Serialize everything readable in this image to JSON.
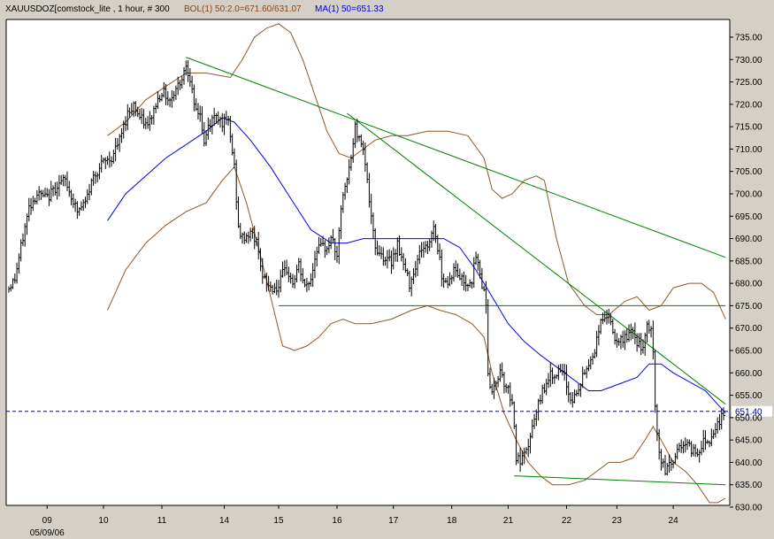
{
  "header": {
    "symbol_text": "XAUUSDOZ[comstock_lite , 1 hour, # 300",
    "bol_text": "BOL(1) 50:2.0=671.60/631.07",
    "ma_text": "MA(1) 50=651.33"
  },
  "colors": {
    "background": "#d4d0c8",
    "plot_background": "#ffffff",
    "price_bars": "#000000",
    "bollinger": "#8b5a2b",
    "moving_average": "#0000ee",
    "trendlines": "#008000",
    "last_price_line": "#00008b"
  },
  "chart_data": {
    "type": "line",
    "title": "",
    "x_axis": {
      "tick_labels": [
        "09",
        "10",
        "11",
        "14",
        "15",
        "16",
        "17",
        "18",
        "21",
        "22",
        "23",
        "24"
      ],
      "tick_bars": [
        19,
        47,
        76,
        107,
        134,
        163,
        191,
        220,
        248,
        277,
        302,
        330
      ],
      "sublabel": "05/09/06",
      "bar_count": 356
    },
    "y_axis": {
      "position": "right",
      "ylim": [
        628,
        738
      ],
      "ticks": [
        "735.00",
        "730.00",
        "725.00",
        "720.00",
        "715.00",
        "710.00",
        "705.00",
        "700.00",
        "695.00",
        "690.00",
        "685.00",
        "680.00",
        "675.00",
        "670.00",
        "665.00",
        "660.00",
        "655.00",
        "650.00",
        "645.00",
        "640.00",
        "635.00",
        "630.00"
      ],
      "tick_values": [
        735,
        730,
        725,
        720,
        715,
        710,
        705,
        700,
        695,
        690,
        685,
        680,
        675,
        670,
        665,
        660,
        655,
        650,
        645,
        640,
        635,
        630
      ],
      "last_price_label": "651.40",
      "last_price": 651.4
    },
    "grid": false,
    "price_keypoints": [
      [
        0,
        679
      ],
      [
        3,
        681
      ],
      [
        6,
        688
      ],
      [
        10,
        697
      ],
      [
        14,
        700
      ],
      [
        19,
        699
      ],
      [
        24,
        702
      ],
      [
        28,
        703
      ],
      [
        34,
        696
      ],
      [
        38,
        698
      ],
      [
        42,
        704
      ],
      [
        47,
        707
      ],
      [
        51,
        708
      ],
      [
        55,
        712
      ],
      [
        59,
        718
      ],
      [
        62,
        720
      ],
      [
        65,
        717
      ],
      [
        69,
        715
      ],
      [
        73,
        720
      ],
      [
        76,
        723
      ],
      [
        80,
        721
      ],
      [
        86,
        726
      ],
      [
        88,
        729
      ],
      [
        90,
        726
      ],
      [
        92,
        719
      ],
      [
        95,
        718
      ],
      [
        97,
        711
      ],
      [
        99,
        715
      ],
      [
        103,
        718
      ],
      [
        106,
        716
      ],
      [
        109,
        716
      ],
      [
        112,
        706
      ],
      [
        114,
        692
      ],
      [
        116,
        690
      ],
      [
        119,
        691
      ],
      [
        121,
        691
      ],
      [
        124,
        688
      ],
      [
        126,
        681
      ],
      [
        130,
        679
      ],
      [
        134,
        679
      ],
      [
        136,
        682
      ],
      [
        138,
        683
      ],
      [
        141,
        680
      ],
      [
        144,
        684
      ],
      [
        147,
        679
      ],
      [
        150,
        681
      ],
      [
        153,
        688
      ],
      [
        157,
        688
      ],
      [
        161,
        690
      ],
      [
        163,
        685
      ],
      [
        165,
        697
      ],
      [
        168,
        703
      ],
      [
        170,
        708
      ],
      [
        172,
        715
      ],
      [
        174,
        712
      ],
      [
        176,
        711
      ],
      [
        178,
        703
      ],
      [
        180,
        694
      ],
      [
        182,
        688
      ],
      [
        184,
        687
      ],
      [
        188,
        685
      ],
      [
        190,
        685
      ],
      [
        193,
        689
      ],
      [
        196,
        684
      ],
      [
        199,
        680
      ],
      [
        202,
        684
      ],
      [
        205,
        688
      ],
      [
        208,
        688
      ],
      [
        211,
        693
      ],
      [
        213,
        688
      ],
      [
        215,
        682
      ],
      [
        218,
        680
      ],
      [
        221,
        683
      ],
      [
        223,
        682
      ],
      [
        227,
        680
      ],
      [
        230,
        681
      ],
      [
        232,
        686
      ],
      [
        234,
        682
      ],
      [
        237,
        676
      ],
      [
        238,
        660
      ],
      [
        240,
        655
      ],
      [
        242,
        658
      ],
      [
        244,
        661
      ],
      [
        246,
        658
      ],
      [
        248,
        656
      ],
      [
        250,
        654
      ],
      [
        252,
        641
      ],
      [
        254,
        640
      ],
      [
        257,
        642
      ],
      [
        259,
        646
      ],
      [
        262,
        651
      ],
      [
        265,
        656
      ],
      [
        268,
        659
      ],
      [
        271,
        660
      ],
      [
        274,
        660
      ],
      [
        276,
        659
      ],
      [
        279,
        654
      ],
      [
        282,
        655
      ],
      [
        285,
        659
      ],
      [
        288,
        662
      ],
      [
        291,
        665
      ],
      [
        293,
        670
      ],
      [
        296,
        673
      ],
      [
        299,
        671
      ],
      [
        302,
        666
      ],
      [
        306,
        668
      ],
      [
        309,
        669
      ],
      [
        312,
        667
      ],
      [
        315,
        665
      ],
      [
        317,
        670
      ],
      [
        319,
        670
      ],
      [
        320,
        664
      ],
      [
        321,
        652
      ],
      [
        322,
        646
      ],
      [
        324,
        640
      ],
      [
        326,
        638
      ],
      [
        328,
        640
      ],
      [
        330,
        640
      ],
      [
        333,
        644
      ],
      [
        336,
        644
      ],
      [
        339,
        643
      ],
      [
        342,
        642
      ],
      [
        345,
        645
      ],
      [
        348,
        645
      ],
      [
        351,
        648
      ],
      [
        354,
        650
      ],
      [
        356,
        651
      ]
    ],
    "series": [
      {
        "name": "BOL(1) 50:2.0 upper",
        "points": [
          [
            49,
            713
          ],
          [
            58,
            716
          ],
          [
            68,
            721
          ],
          [
            78,
            724
          ],
          [
            88,
            727
          ],
          [
            98,
            727
          ],
          [
            110,
            726
          ],
          [
            116,
            730
          ],
          [
            122,
            735
          ],
          [
            128,
            737
          ],
          [
            134,
            738
          ],
          [
            140,
            736
          ],
          [
            146,
            730
          ],
          [
            152,
            722
          ],
          [
            158,
            714
          ],
          [
            164,
            709
          ],
          [
            170,
            708
          ],
          [
            176,
            710
          ],
          [
            182,
            712
          ],
          [
            190,
            713
          ],
          [
            198,
            713
          ],
          [
            208,
            714
          ],
          [
            218,
            714
          ],
          [
            228,
            713
          ],
          [
            236,
            708
          ],
          [
            240,
            701
          ],
          [
            245,
            699
          ],
          [
            250,
            700
          ],
          [
            256,
            703
          ],
          [
            262,
            704
          ],
          [
            266,
            703
          ],
          [
            272,
            690
          ],
          [
            278,
            680
          ],
          [
            286,
            675
          ],
          [
            292,
            673
          ],
          [
            298,
            673
          ],
          [
            306,
            676
          ],
          [
            312,
            677
          ],
          [
            318,
            674
          ],
          [
            324,
            675
          ],
          [
            330,
            679
          ],
          [
            338,
            680
          ],
          [
            344,
            680
          ],
          [
            350,
            678
          ],
          [
            356,
            672
          ]
        ]
      },
      {
        "name": "BOL(1) 50:2.0 lower",
        "points": [
          [
            49,
            674
          ],
          [
            58,
            683
          ],
          [
            68,
            689
          ],
          [
            78,
            693
          ],
          [
            88,
            696
          ],
          [
            98,
            698
          ],
          [
            106,
            703
          ],
          [
            112,
            706
          ],
          [
            118,
            698
          ],
          [
            124,
            688
          ],
          [
            130,
            677
          ],
          [
            136,
            666
          ],
          [
            142,
            665
          ],
          [
            148,
            666
          ],
          [
            154,
            668
          ],
          [
            160,
            671
          ],
          [
            166,
            672
          ],
          [
            172,
            671
          ],
          [
            180,
            671
          ],
          [
            190,
            672
          ],
          [
            200,
            674
          ],
          [
            208,
            675
          ],
          [
            214,
            674
          ],
          [
            222,
            673
          ],
          [
            230,
            671
          ],
          [
            236,
            668
          ],
          [
            240,
            660
          ],
          [
            246,
            651
          ],
          [
            252,
            645
          ],
          [
            258,
            640
          ],
          [
            264,
            637
          ],
          [
            270,
            635
          ],
          [
            278,
            635
          ],
          [
            286,
            636
          ],
          [
            292,
            638
          ],
          [
            298,
            640
          ],
          [
            304,
            640
          ],
          [
            310,
            641
          ],
          [
            316,
            645
          ],
          [
            320,
            648
          ],
          [
            324,
            645
          ],
          [
            330,
            640
          ],
          [
            336,
            638
          ],
          [
            342,
            635
          ],
          [
            348,
            631
          ],
          [
            352,
            631
          ],
          [
            356,
            632
          ]
        ]
      },
      {
        "name": "MA(1) 50",
        "points": [
          [
            49,
            694
          ],
          [
            58,
            700
          ],
          [
            68,
            704
          ],
          [
            78,
            708
          ],
          [
            88,
            711
          ],
          [
            98,
            714
          ],
          [
            106,
            717
          ],
          [
            112,
            716
          ],
          [
            120,
            712
          ],
          [
            130,
            706
          ],
          [
            140,
            699
          ],
          [
            150,
            692
          ],
          [
            160,
            689
          ],
          [
            168,
            689
          ],
          [
            176,
            690
          ],
          [
            186,
            690
          ],
          [
            196,
            690
          ],
          [
            206,
            690
          ],
          [
            216,
            690
          ],
          [
            224,
            688
          ],
          [
            232,
            683
          ],
          [
            240,
            677
          ],
          [
            248,
            671
          ],
          [
            256,
            667
          ],
          [
            264,
            664
          ],
          [
            270,
            662
          ],
          [
            276,
            660
          ],
          [
            282,
            658
          ],
          [
            288,
            656
          ],
          [
            294,
            656
          ],
          [
            300,
            657
          ],
          [
            306,
            658
          ],
          [
            312,
            659
          ],
          [
            318,
            662
          ],
          [
            324,
            662
          ],
          [
            330,
            660
          ],
          [
            338,
            658
          ],
          [
            346,
            656
          ],
          [
            352,
            653
          ],
          [
            356,
            651
          ]
        ]
      }
    ],
    "trendlines": [
      [
        [
          88,
          730.5
        ],
        [
          356,
          685.8
        ]
      ],
      [
        [
          168,
          718
        ],
        [
          356,
          653
        ]
      ],
      [
        [
          134,
          675
        ],
        [
          356,
          675
        ]
      ],
      [
        [
          251,
          637
        ],
        [
          356,
          635
        ]
      ]
    ]
  }
}
